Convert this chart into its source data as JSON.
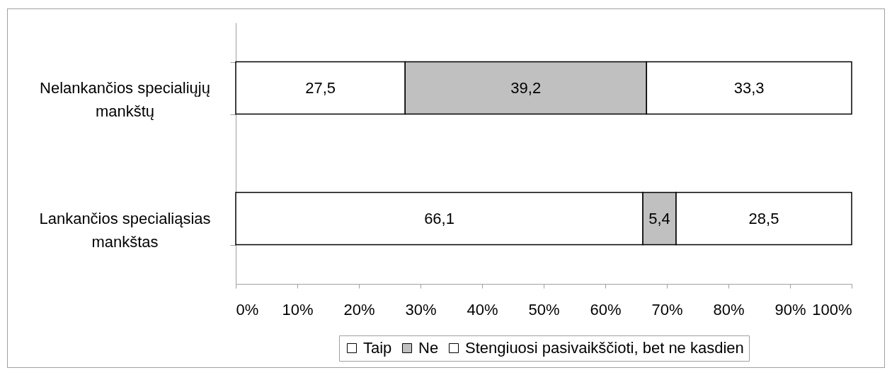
{
  "chart_data": {
    "type": "bar",
    "orientation": "horizontal",
    "stacked": true,
    "categories": [
      "Nelankančios specialiųjų mankštų",
      "Lankančios specialiąsias mankštas"
    ],
    "series": [
      {
        "name": "Taip",
        "color": "#ffffff",
        "values": [
          27.5,
          66.1
        ],
        "value_labels": [
          "27,5",
          "66,1"
        ]
      },
      {
        "name": "Ne",
        "color": "#c0c0c0",
        "values": [
          39.2,
          5.4
        ],
        "value_labels": [
          "39,2",
          "5,4"
        ]
      },
      {
        "name": "Stengiuosi pasivaikščioti, bet ne kasdien",
        "color": "#ffffff",
        "values": [
          33.3,
          28.5
        ],
        "value_labels": [
          "33,3",
          "28,5"
        ]
      }
    ],
    "xlim": [
      0,
      100
    ],
    "xticks": [
      {
        "value": 0,
        "label": "0%"
      },
      {
        "value": 10,
        "label": "10%"
      },
      {
        "value": 20,
        "label": "20%"
      },
      {
        "value": 30,
        "label": "30%"
      },
      {
        "value": 40,
        "label": "40%"
      },
      {
        "value": 50,
        "label": "50%"
      },
      {
        "value": 60,
        "label": "60%"
      },
      {
        "value": 70,
        "label": "70%"
      },
      {
        "value": 80,
        "label": "80%"
      },
      {
        "value": 90,
        "label": "90%"
      },
      {
        "value": 100,
        "label": "100%"
      }
    ],
    "legend": "bottom"
  }
}
